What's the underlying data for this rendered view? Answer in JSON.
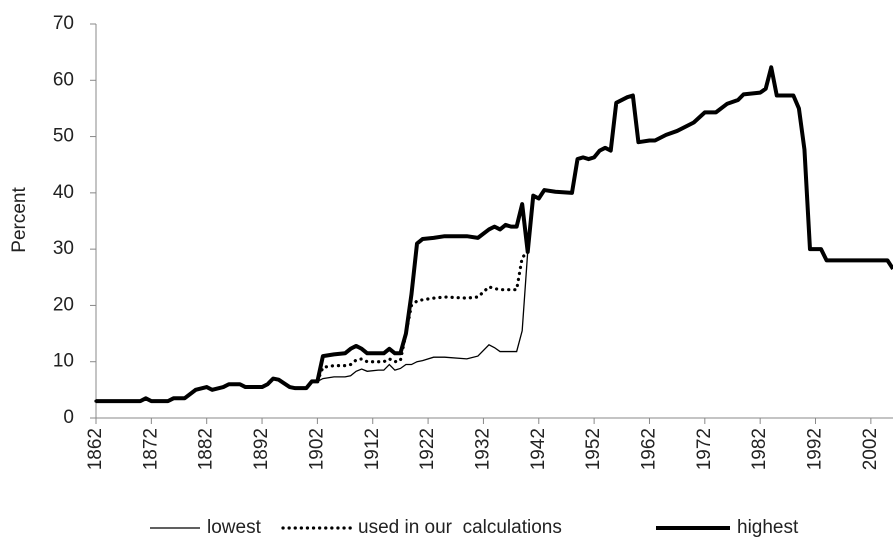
{
  "chart_data": {
    "type": "line",
    "y_label": "Percent",
    "x": [
      1862,
      1870,
      1871,
      1872,
      1875,
      1876,
      1878,
      1880,
      1882,
      1883,
      1885,
      1886,
      1888,
      1889,
      1892,
      1893,
      1894,
      1895,
      1897,
      1898,
      1900,
      1901,
      1902,
      1903,
      1905,
      1907,
      1908,
      1909,
      1910,
      1911,
      1913,
      1914,
      1915,
      1916,
      1917,
      1918,
      1919,
      1920,
      1921,
      1923,
      1925,
      1929,
      1931,
      1933,
      1934,
      1935,
      1936,
      1937,
      1938,
      1939,
      1940,
      1941,
      1942,
      1943,
      1945,
      1948,
      1949,
      1950,
      1951,
      1952,
      1953,
      1954,
      1955,
      1956,
      1958,
      1959,
      1960,
      1962,
      1963,
      1965,
      1967,
      1970,
      1972,
      1974,
      1976,
      1978,
      1979,
      1982,
      1983,
      1984,
      1985,
      1988,
      1989,
      1990,
      1991,
      1993,
      1994,
      2005,
      2006
    ],
    "series": [
      {
        "name": "lowest",
        "color": "#000000",
        "values": [
          3,
          3,
          3.5,
          3,
          3,
          3.5,
          3.5,
          5,
          5.5,
          5,
          5.5,
          6,
          6,
          5.5,
          5.5,
          6,
          7,
          6.8,
          5.5,
          5.3,
          5.3,
          6.5,
          6.5,
          7,
          7.3,
          7.3,
          7.5,
          8.3,
          8.7,
          8.3,
          8.5,
          8.5,
          9.5,
          8.5,
          8.8,
          9.5,
          9.5,
          10,
          10.2,
          10.8,
          10.8,
          10.5,
          11,
          13,
          12.5,
          11.8,
          11.8,
          11.8,
          11.8,
          15.5,
          29.5,
          39.5,
          null,
          null,
          null,
          null,
          null,
          null,
          null,
          null,
          null,
          null,
          null,
          null,
          null,
          null,
          null,
          null,
          null,
          null,
          null,
          null,
          null,
          null,
          null,
          null,
          null,
          null,
          null,
          null,
          null,
          null,
          null,
          null,
          null,
          null,
          null,
          null,
          null
        ]
      },
      {
        "name": "used in our  calculations",
        "color": "#000000",
        "values": [
          3,
          3,
          3.5,
          3,
          3,
          3.5,
          3.5,
          5,
          5.5,
          5,
          5.5,
          6,
          6,
          5.5,
          5.5,
          6,
          7,
          6.8,
          5.5,
          5.3,
          5.3,
          6.5,
          6.5,
          9,
          9.3,
          9.3,
          9.5,
          10.3,
          10.5,
          10,
          10,
          10,
          10.5,
          10,
          10.2,
          15,
          20,
          20.8,
          21,
          21.3,
          21.5,
          21.3,
          21.5,
          23.3,
          23,
          22.8,
          22.8,
          22.8,
          22.8,
          28.5,
          29.5,
          39.5,
          null,
          null,
          null,
          null,
          null,
          null,
          null,
          null,
          null,
          null,
          null,
          null,
          null,
          null,
          null,
          null,
          null,
          null,
          null,
          null,
          null,
          null,
          null,
          null,
          null,
          null,
          null,
          null,
          null,
          null,
          null,
          null,
          null,
          null,
          null,
          null,
          null
        ]
      },
      {
        "name": "highest",
        "color": "#000000",
        "values": [
          3,
          3,
          3.5,
          3,
          3,
          3.5,
          3.5,
          5,
          5.5,
          5,
          5.5,
          6,
          6,
          5.5,
          5.5,
          6,
          7,
          6.8,
          5.5,
          5.3,
          5.3,
          6.5,
          6.5,
          11,
          11.3,
          11.5,
          12.3,
          12.8,
          12.3,
          11.5,
          11.5,
          11.5,
          12.3,
          11.5,
          11.5,
          15,
          22,
          31,
          31.8,
          32,
          32.3,
          32.3,
          32,
          33.5,
          34,
          33.5,
          34.3,
          34,
          34,
          38,
          29.5,
          39.5,
          39,
          40.5,
          40.2,
          40,
          46,
          46.3,
          46,
          46.3,
          47.5,
          48,
          47.5,
          56,
          57,
          57.3,
          49,
          49.3,
          49.3,
          50.3,
          51,
          52.5,
          54.3,
          54.3,
          55.8,
          56.5,
          57.5,
          57.8,
          58.5,
          62.3,
          57.3,
          57.3,
          55,
          47.7,
          30,
          30,
          28,
          28,
          26.5
        ]
      }
    ],
    "xlim": [
      1862,
      2006
    ],
    "xticks": [
      1862,
      1872,
      1882,
      1892,
      1902,
      1912,
      1922,
      1932,
      1942,
      1952,
      1962,
      1972,
      1982,
      1992,
      2002
    ],
    "ylim": [
      0,
      70
    ],
    "yticks": [
      0,
      10,
      20,
      30,
      40,
      50,
      60,
      70
    ],
    "grid": false,
    "legend": "bottom"
  }
}
